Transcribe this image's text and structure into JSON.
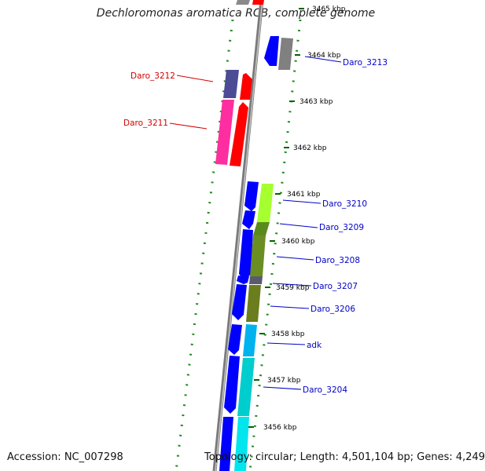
{
  "title": "Dechloromonas aromatica RCB, complete genome",
  "accession_text": "Accession: NC_007298",
  "summary_text": "Topology: circular; Length: 4,501,104 bp; Genes: 4,249",
  "colors": {
    "backbone": "#8a8a8a",
    "dotted_guide": "#228b22",
    "tick_line": "#006400",
    "label_red": "#d40000",
    "label_blue": "#0000c8"
  },
  "scale": {
    "unit": "kbp",
    "ticks": [
      {
        "label": "3465 kbp"
      },
      {
        "label": "3464 kbp"
      },
      {
        "label": "3463 kbp"
      },
      {
        "label": "3462 kbp"
      },
      {
        "label": "3461 kbp"
      },
      {
        "label": "3460 kbp"
      },
      {
        "label": "3459 kbp"
      },
      {
        "label": "3458 kbp"
      },
      {
        "label": "3457 kbp"
      },
      {
        "label": "3456 kbp"
      }
    ]
  },
  "genes": [
    {
      "name": "Daro_3213",
      "strand": "reverse",
      "color": "blue"
    },
    {
      "name": "Daro_3212",
      "strand": "forward",
      "color": "red"
    },
    {
      "name": "Daro_3211",
      "strand": "forward",
      "color": "red"
    },
    {
      "name": "Daro_3210",
      "strand": "reverse",
      "color": "blue"
    },
    {
      "name": "Daro_3209",
      "strand": "reverse",
      "color": "blue"
    },
    {
      "name": "Daro_3208",
      "strand": "reverse",
      "color": "blue"
    },
    {
      "name": "Daro_3207",
      "strand": "reverse",
      "color": "blue"
    },
    {
      "name": "Daro_3206",
      "strand": "reverse",
      "color": "blue"
    },
    {
      "name": "adk",
      "strand": "reverse",
      "color": "blue"
    },
    {
      "name": "Daro_3204",
      "strand": "reverse",
      "color": "blue"
    }
  ]
}
